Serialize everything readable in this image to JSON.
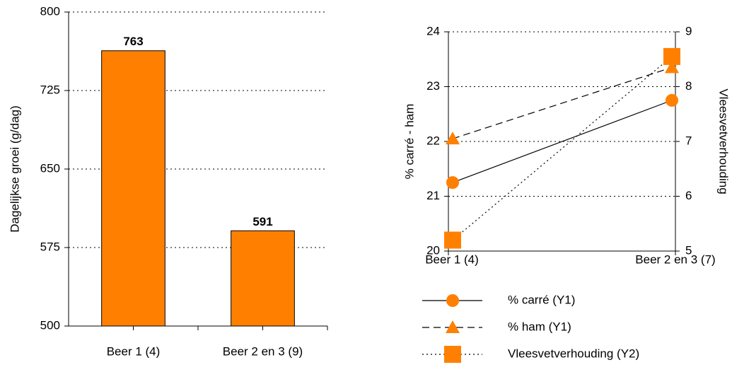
{
  "chart_data": [
    {
      "type": "bar",
      "y_label": "Dagelijkse groei (g/dag)",
      "categories": [
        "Beer 1 (4)",
        "Beer 2 en 3 (9)"
      ],
      "values": [
        763,
        591
      ],
      "color": "#ff8000",
      "ylim": [
        500,
        800
      ],
      "yticks": [
        500,
        575,
        650,
        725,
        800
      ],
      "grid": true
    },
    {
      "type": "line",
      "y_label": "% carré - ham",
      "y2_label": "Vleesvetverhouding",
      "categories": [
        "Beer 1 (4)",
        "Beer 2 en 3 (7)"
      ],
      "series": [
        {
          "name": "% carré (Y1)",
          "color": "#ff8000",
          "line_style": "solid",
          "marker": "circle",
          "values": [
            21.25,
            22.75
          ]
        },
        {
          "name": "% ham (Y1)",
          "color": "#ff8000",
          "line_style": "dashed",
          "marker": "triangle",
          "values": [
            22.05,
            23.35
          ]
        },
        {
          "name": "Vleesvetverhouding (Y2)",
          "color": "#ff8000",
          "line_style": "dotted",
          "marker": "square",
          "axis": "y2",
          "values": [
            5.2,
            8.55
          ]
        }
      ],
      "ylim": [
        20,
        24
      ],
      "yticks": [
        20,
        21,
        22,
        23,
        24
      ],
      "y2lim": [
        5,
        9
      ],
      "y2ticks": [
        5,
        6,
        7,
        8,
        9
      ],
      "grid": true,
      "legend": "bottom"
    }
  ]
}
